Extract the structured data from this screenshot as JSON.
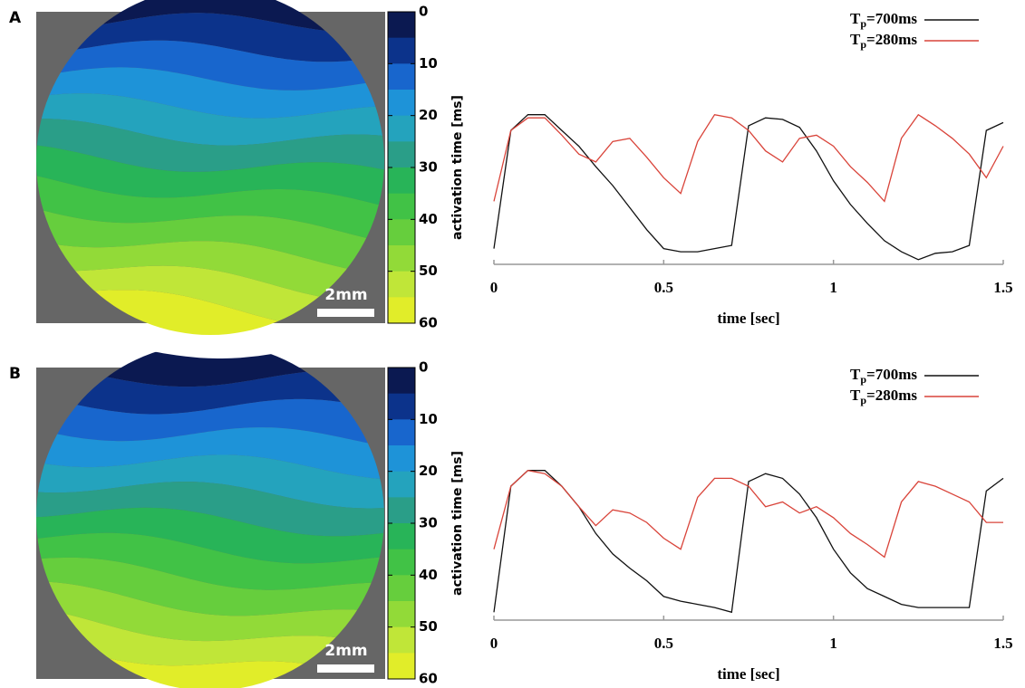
{
  "chart_data": [
    {
      "type": "contour",
      "panel_label": "A",
      "colorbar_label": "activation time [ms]",
      "ylim": [
        0,
        60
      ],
      "yticks": [
        0,
        10,
        20,
        30,
        40,
        50,
        60
      ],
      "levels": [
        0,
        5,
        10,
        15,
        20,
        25,
        30,
        35,
        40,
        45,
        50,
        55
      ],
      "colors": [
        "#0b0f35",
        "#0a2a80",
        "#1a6fd8",
        "#20a8d8",
        "#2a9a90",
        "#28b850",
        "#50c840",
        "#8ad838",
        "#c8e838",
        "#f0f020"
      ],
      "scale_bar": "2mm"
    },
    {
      "type": "line",
      "xlabel": "time [sec]",
      "xlim": [
        0,
        1.5
      ],
      "xticks": [
        0,
        0.5,
        1,
        1.5
      ],
      "ylim": [
        0,
        1
      ],
      "legend": "upper right",
      "x": [
        0,
        0.05,
        0.1,
        0.15,
        0.2,
        0.25,
        0.3,
        0.35,
        0.4,
        0.45,
        0.5,
        0.55,
        0.6,
        0.65,
        0.7,
        0.75,
        0.8,
        0.85,
        0.9,
        0.95,
        1.0,
        1.05,
        1.1,
        1.15,
        1.2,
        1.25,
        1.3,
        1.35,
        1.4,
        1.45,
        1.5
      ],
      "series": [
        {
          "name": "Tp=700ms",
          "color": "#111111",
          "values": [
            0.1,
            0.85,
            0.95,
            0.95,
            0.85,
            0.75,
            0.62,
            0.5,
            0.36,
            0.22,
            0.1,
            0.08,
            0.08,
            0.1,
            0.12,
            0.88,
            0.93,
            0.92,
            0.87,
            0.72,
            0.53,
            0.38,
            0.26,
            0.15,
            0.08,
            0.03,
            0.07,
            0.08,
            0.12,
            0.85,
            0.9
          ]
        },
        {
          "name": "Tp=280ms",
          "color": "#d9443a",
          "values": [
            0.4,
            0.85,
            0.93,
            0.93,
            0.82,
            0.7,
            0.65,
            0.78,
            0.8,
            0.68,
            0.55,
            0.45,
            0.78,
            0.95,
            0.93,
            0.85,
            0.72,
            0.65,
            0.8,
            0.82,
            0.75,
            0.62,
            0.52,
            0.4,
            0.8,
            0.95,
            0.88,
            0.8,
            0.7,
            0.55,
            0.75
          ]
        }
      ]
    },
    {
      "type": "contour",
      "panel_label": "B",
      "colorbar_label": "activation time [ms]",
      "ylim": [
        0,
        60
      ],
      "yticks": [
        0,
        10,
        20,
        30,
        40,
        50,
        60
      ],
      "levels": [
        0,
        5,
        10,
        15,
        20,
        25,
        30,
        35,
        40,
        45,
        50,
        55
      ],
      "colors": [
        "#0b0f35",
        "#0a2a80",
        "#1a6fd8",
        "#20a8d8",
        "#2a9a90",
        "#28b850",
        "#50c840",
        "#8ad838",
        "#c8e838",
        "#f0f020"
      ],
      "scale_bar": "2mm"
    },
    {
      "type": "line",
      "xlabel": "time [sec]",
      "xlim": [
        0,
        1.5
      ],
      "xticks": [
        0,
        0.5,
        1,
        1.5
      ],
      "ylim": [
        0,
        1
      ],
      "legend": "upper right",
      "x": [
        0,
        0.05,
        0.1,
        0.15,
        0.2,
        0.25,
        0.3,
        0.35,
        0.4,
        0.45,
        0.5,
        0.55,
        0.6,
        0.65,
        0.7,
        0.75,
        0.8,
        0.85,
        0.9,
        0.95,
        1.0,
        1.05,
        1.1,
        1.15,
        1.2,
        1.25,
        1.3,
        1.35,
        1.4,
        1.45,
        1.5
      ],
      "series": [
        {
          "name": "Tp=700ms",
          "color": "#111111",
          "values": [
            0.05,
            0.85,
            0.95,
            0.95,
            0.85,
            0.72,
            0.55,
            0.42,
            0.33,
            0.25,
            0.15,
            0.12,
            0.1,
            0.08,
            0.05,
            0.88,
            0.93,
            0.9,
            0.8,
            0.65,
            0.45,
            0.3,
            0.2,
            0.15,
            0.1,
            0.08,
            0.08,
            0.08,
            0.08,
            0.82,
            0.9
          ]
        },
        {
          "name": "Tp=280ms",
          "color": "#d9443a",
          "values": [
            0.45,
            0.85,
            0.95,
            0.93,
            0.85,
            0.72,
            0.6,
            0.7,
            0.68,
            0.62,
            0.52,
            0.45,
            0.78,
            0.9,
            0.9,
            0.85,
            0.72,
            0.75,
            0.68,
            0.72,
            0.65,
            0.55,
            0.48,
            0.4,
            0.75,
            0.88,
            0.85,
            0.8,
            0.75,
            0.62,
            0.62
          ]
        }
      ]
    }
  ]
}
